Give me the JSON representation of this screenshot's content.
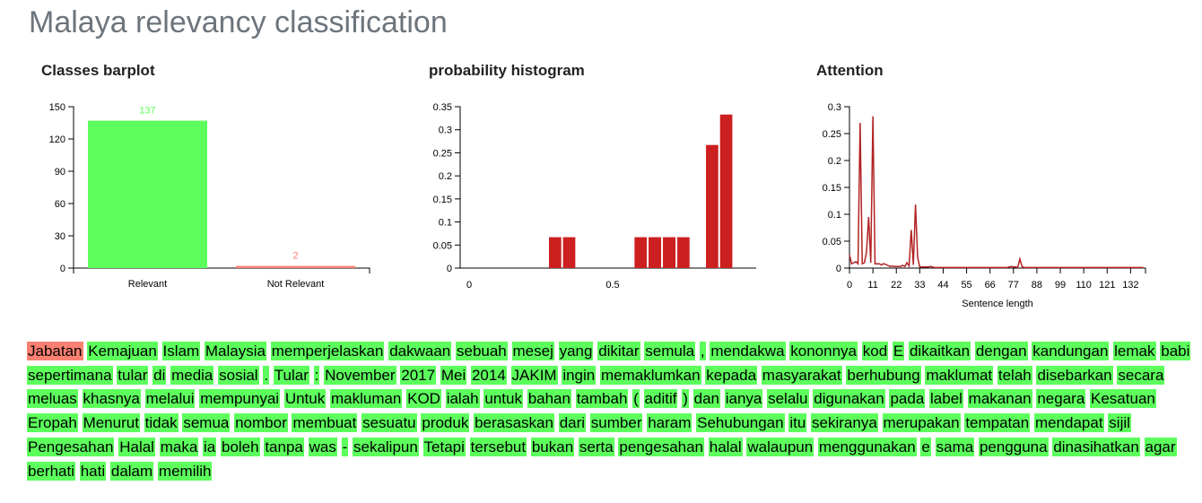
{
  "page": {
    "title": "Malaya relevancy classification"
  },
  "colors": {
    "relevant": "#5cff5c",
    "not_relevant": "#fa8072",
    "histogram_bar": "#cc1f1f",
    "attention_line": "#b22222",
    "title": "#6c757d"
  },
  "chart_data": [
    {
      "type": "bar",
      "title": "Classes barplot",
      "categories": [
        "Relevant",
        "Not Relevant"
      ],
      "values": [
        137,
        2
      ],
      "value_labels": [
        "137",
        "2"
      ],
      "colors": [
        "#5cff5c",
        "#fa8072"
      ],
      "ylim": [
        0,
        150
      ],
      "yticks": [
        0,
        30,
        60,
        90,
        120,
        150
      ],
      "xlabel": "",
      "ylabel": ""
    },
    {
      "type": "bar",
      "title": "probability histogram",
      "xlim": [
        0,
        1
      ],
      "ylim": [
        0,
        0.35
      ],
      "yticks": [
        0,
        0.05,
        0.1,
        0.15,
        0.2,
        0.25,
        0.3,
        0.35
      ],
      "xticks": [
        0,
        0.5
      ],
      "bins": [
        {
          "x0": 0.275,
          "x1": 0.324,
          "value": 0.067
        },
        {
          "x0": 0.324,
          "x1": 0.373,
          "value": 0.067
        },
        {
          "x0": 0.573,
          "x1": 0.622,
          "value": 0.067
        },
        {
          "x0": 0.622,
          "x1": 0.672,
          "value": 0.067
        },
        {
          "x0": 0.672,
          "x1": 0.722,
          "value": 0.067
        },
        {
          "x0": 0.722,
          "x1": 0.771,
          "value": 0.067
        },
        {
          "x0": 0.822,
          "x1": 0.871,
          "value": 0.267
        },
        {
          "x0": 0.871,
          "x1": 0.92,
          "value": 0.333
        }
      ],
      "xlabel": "",
      "ylabel": ""
    },
    {
      "type": "line",
      "title": "Attention",
      "xlabel": "Sentence length",
      "ylabel": "",
      "xlim": [
        0,
        139
      ],
      "ylim": [
        0,
        0.3
      ],
      "yticks": [
        0,
        0.05,
        0.1,
        0.15,
        0.2,
        0.25,
        0.3
      ],
      "xticks": [
        0,
        11,
        22,
        33,
        44,
        55,
        66,
        77,
        88,
        99,
        110,
        121,
        132
      ],
      "values": [
        0.025,
        0.008,
        0.01,
        0.012,
        0.008,
        0.27,
        0.008,
        0.01,
        0.03,
        0.095,
        0.01,
        0.282,
        0.008,
        0.008,
        0.008,
        0.006,
        0.008,
        0.007,
        0.005,
        0.003,
        0.004,
        0.003,
        0.003,
        0.003,
        0.003,
        0.005,
        0.003,
        0.01,
        0.004,
        0.071,
        0.006,
        0.118,
        0.02,
        0.002,
        0.002,
        0.002,
        0.002,
        0.002,
        0.003,
        0.002,
        0.001,
        0.001,
        0.001,
        0.001,
        0.001,
        0.001,
        0.001,
        0.001,
        0.001,
        0.001,
        0.001,
        0.001,
        0.001,
        0.001,
        0.001,
        0.001,
        0.001,
        0.001,
        0.001,
        0.001,
        0.001,
        0.001,
        0.001,
        0.001,
        0.001,
        0.001,
        0.001,
        0.001,
        0.001,
        0.001,
        0.001,
        0.001,
        0.001,
        0.001,
        0.001,
        0.002,
        0.003,
        0.002,
        0.002,
        0.001,
        0.017,
        0.003,
        0.001,
        0.001,
        0.001,
        0.001,
        0.001,
        0.001,
        0.001,
        0.001,
        0.001,
        0.001,
        0.001,
        0.001,
        0.001,
        0.001,
        0.001,
        0.001,
        0.001,
        0.001,
        0.001,
        0.001,
        0.001,
        0.001,
        0.001,
        0.001,
        0.001,
        0.001,
        0.001,
        0.001,
        0.001,
        0.001,
        0.001,
        0.001,
        0.001,
        0.001,
        0.001,
        0.001,
        0.001,
        0.001,
        0.001,
        0.001,
        0.001,
        0.001,
        0.001,
        0.001,
        0.001,
        0.001,
        0.001,
        0.001,
        0.001,
        0.001,
        0.001,
        0.001,
        0.001,
        0.001,
        0.001,
        0.001,
        0.001
      ]
    }
  ],
  "tokens": [
    {
      "text": "Jabatan",
      "label": "not_relevant"
    },
    {
      "text": "Kemajuan",
      "label": "relevant"
    },
    {
      "text": "Islam",
      "label": "relevant"
    },
    {
      "text": "Malaysia",
      "label": "relevant"
    },
    {
      "text": "memperjelaskan",
      "label": "relevant"
    },
    {
      "text": "dakwaan",
      "label": "relevant"
    },
    {
      "text": "sebuah",
      "label": "relevant"
    },
    {
      "text": "mesej",
      "label": "relevant"
    },
    {
      "text": "yang",
      "label": "relevant"
    },
    {
      "text": "dikitar",
      "label": "relevant"
    },
    {
      "text": "semula",
      "label": "relevant"
    },
    {
      "text": ",",
      "label": "relevant"
    },
    {
      "text": "mendakwa",
      "label": "relevant"
    },
    {
      "text": "kononnya",
      "label": "relevant"
    },
    {
      "text": "kod",
      "label": "relevant"
    },
    {
      "text": "E",
      "label": "relevant"
    },
    {
      "text": "dikaitkan",
      "label": "relevant"
    },
    {
      "text": "dengan",
      "label": "relevant"
    },
    {
      "text": "kandungan",
      "label": "relevant"
    },
    {
      "text": "lemak",
      "label": "relevant"
    },
    {
      "text": "babi",
      "label": "relevant"
    },
    {
      "text": "sepertimana",
      "label": "relevant"
    },
    {
      "text": "tular",
      "label": "relevant"
    },
    {
      "text": "di",
      "label": "relevant"
    },
    {
      "text": "media",
      "label": "relevant"
    },
    {
      "text": "sosial",
      "label": "relevant"
    },
    {
      "text": ".",
      "label": "relevant"
    },
    {
      "text": "Tular",
      "label": "relevant"
    },
    {
      "text": ":",
      "label": "relevant"
    },
    {
      "text": "November",
      "label": "relevant"
    },
    {
      "text": "2017",
      "label": "relevant"
    },
    {
      "text": "Mei",
      "label": "relevant"
    },
    {
      "text": "2014",
      "label": "relevant"
    },
    {
      "text": "JAKIM",
      "label": "relevant"
    },
    {
      "text": "ingin",
      "label": "relevant"
    },
    {
      "text": "memaklumkan",
      "label": "relevant"
    },
    {
      "text": "kepada",
      "label": "relevant"
    },
    {
      "text": "masyarakat",
      "label": "relevant"
    },
    {
      "text": "berhubung",
      "label": "relevant"
    },
    {
      "text": "maklumat",
      "label": "relevant"
    },
    {
      "text": "telah",
      "label": "relevant"
    },
    {
      "text": "disebarkan",
      "label": "relevant"
    },
    {
      "text": "secara",
      "label": "relevant"
    },
    {
      "text": "meluas",
      "label": "relevant"
    },
    {
      "text": "khasnya",
      "label": "relevant"
    },
    {
      "text": "melalui",
      "label": "relevant"
    },
    {
      "text": "mempunyai",
      "label": "relevant"
    },
    {
      "text": "Untuk",
      "label": "relevant"
    },
    {
      "text": "makluman",
      "label": "relevant"
    },
    {
      "text": "KOD",
      "label": "relevant"
    },
    {
      "text": "ialah",
      "label": "relevant"
    },
    {
      "text": "untuk",
      "label": "relevant"
    },
    {
      "text": "bahan",
      "label": "relevant"
    },
    {
      "text": "tambah",
      "label": "relevant"
    },
    {
      "text": "(",
      "label": "relevant"
    },
    {
      "text": "aditif",
      "label": "relevant"
    },
    {
      "text": ")",
      "label": "relevant"
    },
    {
      "text": "dan",
      "label": "relevant"
    },
    {
      "text": "ianya",
      "label": "relevant"
    },
    {
      "text": "selalu",
      "label": "relevant"
    },
    {
      "text": "digunakan",
      "label": "relevant"
    },
    {
      "text": "pada",
      "label": "relevant"
    },
    {
      "text": "label",
      "label": "relevant"
    },
    {
      "text": "makanan",
      "label": "relevant"
    },
    {
      "text": "negara",
      "label": "relevant"
    },
    {
      "text": "Kesatuan",
      "label": "relevant"
    },
    {
      "text": "Eropah",
      "label": "relevant"
    },
    {
      "text": "Menurut",
      "label": "relevant"
    },
    {
      "text": "tidak",
      "label": "relevant"
    },
    {
      "text": "semua",
      "label": "relevant"
    },
    {
      "text": "nombor",
      "label": "relevant"
    },
    {
      "text": "membuat",
      "label": "relevant"
    },
    {
      "text": "sesuatu",
      "label": "relevant"
    },
    {
      "text": "produk",
      "label": "relevant"
    },
    {
      "text": "berasaskan",
      "label": "relevant"
    },
    {
      "text": "dari",
      "label": "relevant"
    },
    {
      "text": "sumber",
      "label": "relevant"
    },
    {
      "text": "haram",
      "label": "relevant"
    },
    {
      "text": "Sehubungan",
      "label": "relevant"
    },
    {
      "text": "itu",
      "label": "relevant"
    },
    {
      "text": "sekiranya",
      "label": "relevant"
    },
    {
      "text": "merupakan",
      "label": "relevant"
    },
    {
      "text": "tempatan",
      "label": "relevant"
    },
    {
      "text": "mendapat",
      "label": "relevant"
    },
    {
      "text": "sijil",
      "label": "relevant"
    },
    {
      "text": "Pengesahan",
      "label": "relevant"
    },
    {
      "text": "Halal",
      "label": "relevant"
    },
    {
      "text": "maka",
      "label": "relevant"
    },
    {
      "text": "ia",
      "label": "relevant"
    },
    {
      "text": "boleh",
      "label": "relevant"
    },
    {
      "text": "tanpa",
      "label": "relevant"
    },
    {
      "text": "was",
      "label": "relevant"
    },
    {
      "text": "-",
      "label": "relevant"
    },
    {
      "text": "sekalipun",
      "label": "relevant"
    },
    {
      "text": "Tetapi",
      "label": "relevant"
    },
    {
      "text": "tersebut",
      "label": "relevant"
    },
    {
      "text": "bukan",
      "label": "relevant"
    },
    {
      "text": "serta",
      "label": "relevant"
    },
    {
      "text": "pengesahan",
      "label": "relevant"
    },
    {
      "text": "halal",
      "label": "relevant"
    },
    {
      "text": "walaupun",
      "label": "relevant"
    },
    {
      "text": "menggunakan",
      "label": "relevant"
    },
    {
      "text": "e",
      "label": "relevant"
    },
    {
      "text": "sama",
      "label": "relevant"
    },
    {
      "text": "pengguna",
      "label": "relevant"
    },
    {
      "text": "dinasihatkan",
      "label": "relevant"
    },
    {
      "text": "agar",
      "label": "relevant"
    },
    {
      "text": "berhati",
      "label": "relevant"
    },
    {
      "text": "hati",
      "label": "relevant"
    },
    {
      "text": "dalam",
      "label": "relevant"
    },
    {
      "text": "memilih",
      "label": "relevant"
    }
  ]
}
